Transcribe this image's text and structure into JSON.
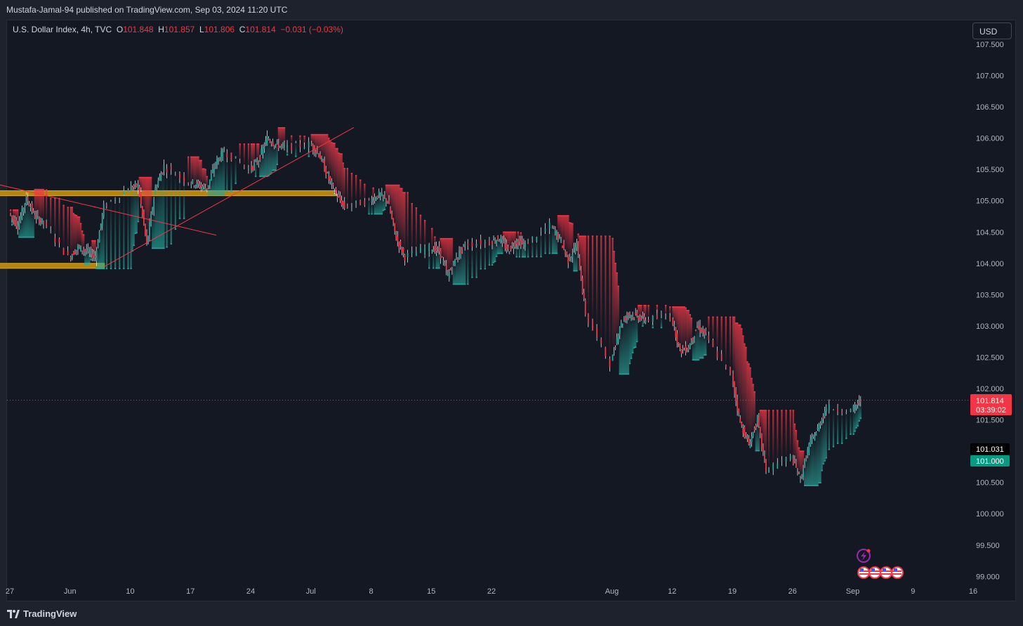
{
  "header": {
    "published_by": "Mustafa-Jamal-94 published on TradingView.com, Sep 03, 2024 11:20 UTC"
  },
  "legend": {
    "symbol": "U.S. Dollar Index, 4h, TVC",
    "o_label": "O",
    "o_value": "101.848",
    "h_label": "H",
    "h_value": "101.857",
    "l_label": "L",
    "l_value": "101.806",
    "c_label": "C",
    "c_value": "101.814",
    "change": "−0.031 (−0.03%)"
  },
  "currency_button": "USD",
  "price_tags": {
    "last_price": "101.814",
    "countdown": "03:39:02",
    "level_black": "101.031",
    "level_green": "101.000"
  },
  "footer": {
    "brand": "TradingView"
  },
  "colors": {
    "background": "#141823",
    "up": "#26a69a",
    "down": "#f23645",
    "zone": "#b5860b",
    "trendline": "#f23645",
    "white_tag": "#000000",
    "green_tag": "#089981"
  },
  "icons": [
    "lightning-icon",
    "us-flag-icon"
  ],
  "chart_data": {
    "type": "candlestick",
    "title": "",
    "y_ticks": [
      "107.500",
      "107.000",
      "106.500",
      "106.000",
      "105.500",
      "105.000",
      "104.500",
      "104.000",
      "103.500",
      "103.000",
      "102.500",
      "102.000",
      "101.500",
      "100.500",
      "100.000",
      "99.500",
      "99.000"
    ],
    "ylim": [
      98.9,
      107.6
    ],
    "x_ticks": [
      "27",
      "Jun",
      "10",
      "17",
      "24",
      "Jul",
      "8",
      "15",
      "22",
      "Aug",
      "12",
      "19",
      "26",
      "Sep",
      "9",
      "16"
    ],
    "x_tick_dates": [
      "2024-05-27",
      "2024-06-03",
      "2024-06-10",
      "2024-06-17",
      "2024-06-24",
      "2024-07-01",
      "2024-07-08",
      "2024-07-15",
      "2024-07-22",
      "2024-08-05",
      "2024-08-12",
      "2024-08-19",
      "2024-08-26",
      "2024-09-02",
      "2024-09-09",
      "2024-09-16"
    ],
    "last_close": 101.814,
    "levels": [
      101.031,
      101.0
    ],
    "zones": [
      {
        "from": "2024-05-25",
        "to": "2024-07-04",
        "low": 105.08,
        "high": 105.16
      },
      {
        "from": "2024-05-25",
        "to": "2024-06-07",
        "low": 103.92,
        "high": 104.0
      }
    ],
    "trendlines": [
      {
        "from": [
          "2024-05-25",
          105.28
        ],
        "to": [
          "2024-06-20",
          104.45
        ]
      },
      {
        "from": [
          "2024-06-07",
          103.95
        ],
        "to": [
          "2024-07-06",
          106.17
        ]
      }
    ],
    "daily_path": [
      [
        "2024-05-27",
        104.8
      ],
      [
        "2024-05-28",
        104.6
      ],
      [
        "2024-05-29",
        105.05
      ],
      [
        "2024-05-30",
        104.75
      ],
      [
        "2024-05-31",
        104.65
      ],
      [
        "2024-06-03",
        104.1
      ],
      [
        "2024-06-04",
        104.25
      ],
      [
        "2024-06-05",
        104.2
      ],
      [
        "2024-06-06",
        104.1
      ],
      [
        "2024-06-07",
        104.9
      ],
      [
        "2024-06-10",
        105.2
      ],
      [
        "2024-06-11",
        105.25
      ],
      [
        "2024-06-12",
        104.3
      ],
      [
        "2024-06-13",
        105.2
      ],
      [
        "2024-06-14",
        105.55
      ],
      [
        "2024-06-17",
        105.3
      ],
      [
        "2024-06-18",
        105.25
      ],
      [
        "2024-06-19",
        105.2
      ],
      [
        "2024-06-20",
        105.6
      ],
      [
        "2024-06-21",
        105.8
      ],
      [
        "2024-06-24",
        105.5
      ],
      [
        "2024-06-25",
        105.65
      ],
      [
        "2024-06-26",
        106.0
      ],
      [
        "2024-06-27",
        105.9
      ],
      [
        "2024-06-28",
        105.85
      ],
      [
        "2024-07-01",
        105.9
      ],
      [
        "2024-07-02",
        105.75
      ],
      [
        "2024-07-03",
        105.4
      ],
      [
        "2024-07-04",
        105.1
      ],
      [
        "2024-07-05",
        104.9
      ],
      [
        "2024-07-08",
        105.0
      ],
      [
        "2024-07-09",
        105.1
      ],
      [
        "2024-07-10",
        105.0
      ],
      [
        "2024-07-11",
        104.4
      ],
      [
        "2024-07-12",
        104.1
      ],
      [
        "2024-07-15",
        104.25
      ],
      [
        "2024-07-16",
        104.2
      ],
      [
        "2024-07-17",
        103.8
      ],
      [
        "2024-07-18",
        104.1
      ],
      [
        "2024-07-19",
        104.3
      ],
      [
        "2024-07-22",
        104.35
      ],
      [
        "2024-07-23",
        104.4
      ],
      [
        "2024-07-24",
        104.2
      ],
      [
        "2024-07-25",
        104.35
      ],
      [
        "2024-07-26",
        104.3
      ],
      [
        "2024-07-29",
        104.6
      ],
      [
        "2024-07-30",
        104.4
      ],
      [
        "2024-07-31",
        104.05
      ],
      [
        "2024-08-01",
        104.3
      ],
      [
        "2024-08-02",
        103.2
      ],
      [
        "2024-08-05",
        102.4
      ],
      [
        "2024-08-06",
        103.0
      ],
      [
        "2024-08-07",
        103.2
      ],
      [
        "2024-08-08",
        103.15
      ],
      [
        "2024-08-09",
        103.1
      ],
      [
        "2024-08-12",
        103.15
      ],
      [
        "2024-08-13",
        102.6
      ],
      [
        "2024-08-14",
        102.65
      ],
      [
        "2024-08-15",
        103.0
      ],
      [
        "2024-08-16",
        102.85
      ],
      [
        "2024-08-19",
        102.2
      ],
      [
        "2024-08-20",
        101.45
      ],
      [
        "2024-08-21",
        101.1
      ],
      [
        "2024-08-22",
        101.5
      ],
      [
        "2024-08-23",
        100.7
      ],
      [
        "2024-08-26",
        100.9
      ],
      [
        "2024-08-27",
        100.55
      ],
      [
        "2024-08-28",
        101.1
      ],
      [
        "2024-08-29",
        101.35
      ],
      [
        "2024-08-30",
        101.7
      ],
      [
        "2024-09-02",
        101.65
      ],
      [
        "2024-09-03",
        101.81
      ]
    ]
  }
}
